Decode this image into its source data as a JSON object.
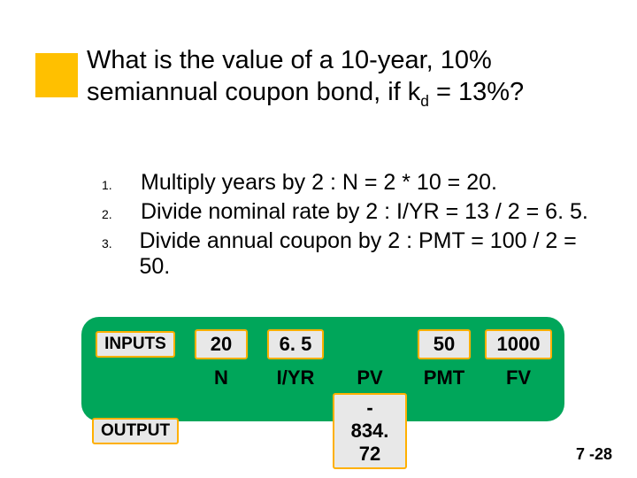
{
  "title_html": "What is the value of a 10-year, 10% semiannual coupon bond, if k<sub>d</sub> = 13%?",
  "list": [
    {
      "num": "1.",
      "text": "Multiply years by 2 : N = 2 * 10 = 20."
    },
    {
      "num": "2.",
      "text": "Divide nominal rate by 2 : I/YR = 13 / 2 = 6. 5."
    },
    {
      "num": "3.",
      "text": "Divide annual coupon by 2 : PMT = 100 / 2 = 50."
    }
  ],
  "calc": {
    "inputs_label": "INPUTS",
    "output_label": "OUTPUT",
    "columns": [
      "N",
      "I/YR",
      "PV",
      "PMT",
      "FV"
    ],
    "input_values": [
      "20",
      "6. 5",
      "",
      "50",
      "1000"
    ],
    "output_values": [
      "",
      "",
      "- 834. 72",
      "",
      ""
    ]
  },
  "page_number": "7 -28",
  "colors": {
    "accent": "#ffc000",
    "panel": "#00a65a",
    "box_border": "#ffb000",
    "box_bg": "#e8e8e8"
  }
}
